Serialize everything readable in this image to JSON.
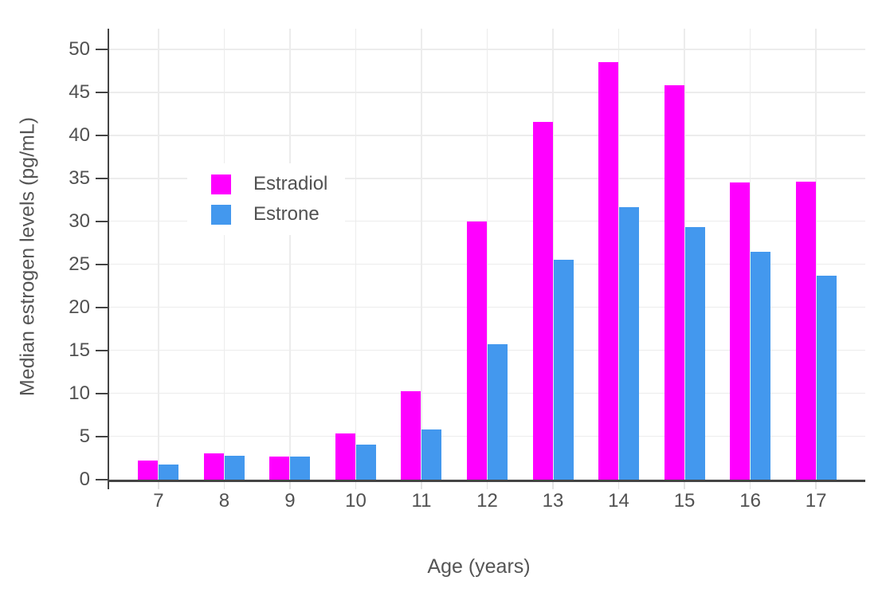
{
  "chart_data": {
    "type": "bar",
    "title": "",
    "xlabel": "Age (years)",
    "ylabel": "Median estrogen levels (pg/mL)",
    "categories": [
      "7",
      "8",
      "9",
      "10",
      "11",
      "12",
      "13",
      "14",
      "15",
      "16",
      "17"
    ],
    "series": [
      {
        "name": "Estradiol",
        "color": "#ff00ff",
        "values": [
          2.2,
          3.0,
          2.6,
          5.3,
          10.2,
          30.0,
          41.6,
          48.5,
          45.8,
          34.5,
          34.6
        ]
      },
      {
        "name": "Estrone",
        "color": "#4398ee",
        "values": [
          1.7,
          2.7,
          2.6,
          4.0,
          5.8,
          15.7,
          25.5,
          31.6,
          29.3,
          26.5,
          23.7
        ]
      }
    ],
    "ylim": [
      0,
      52.4
    ],
    "yticks": [
      0,
      5,
      10,
      15,
      20,
      25,
      30,
      35,
      40,
      45,
      50
    ],
    "grid": true,
    "legend_position": "inside-top-left",
    "colors": {
      "axis": "#444444",
      "grid": "#ececec",
      "tick_text": "#515151",
      "title_text": "#555555",
      "background": "#ffffff"
    }
  }
}
